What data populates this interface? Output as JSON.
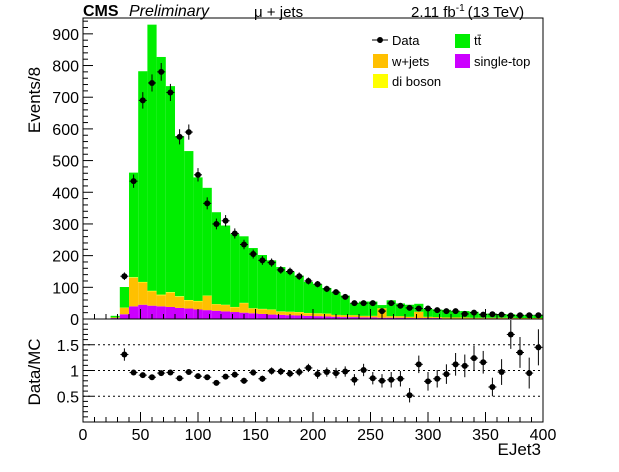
{
  "header": {
    "experiment": "CMS",
    "status": "Preliminary",
    "channel": "μ + jets",
    "lumi_value": "2.11 fb",
    "lumi_exp": "-1",
    "energy": "(13 TeV)"
  },
  "colors": {
    "ttbar": "#00ee00",
    "wjets": "#ffc000",
    "singletop": "#cc00ff",
    "diboson": "#ffff00",
    "data": "#000000",
    "ratio_ref": "#000000"
  },
  "legend": {
    "data": "Data",
    "ttbar": "tt̄",
    "wjets": "w+jets",
    "singletop": "single-top",
    "diboson": "di boson"
  },
  "chart_data": [
    {
      "type": "bar",
      "stacked": true,
      "ylabel": "Events/8",
      "xlim": [
        0,
        400
      ],
      "ylim": [
        0,
        950
      ],
      "y_ticks": [
        0,
        100,
        200,
        300,
        400,
        500,
        600,
        700,
        800,
        900
      ],
      "bin_width": 8,
      "bin_edges_start": [
        24,
        32,
        40,
        48,
        56,
        64,
        72,
        80,
        88,
        96,
        104,
        112,
        120,
        128,
        136,
        144,
        152,
        160,
        168,
        176,
        184,
        192,
        200,
        208,
        216,
        224,
        232,
        240,
        248,
        256,
        264,
        272,
        280,
        288,
        296,
        304,
        312,
        320,
        328,
        336,
        344,
        352,
        360,
        368,
        376,
        384,
        392
      ],
      "series": [
        {
          "name": "single-top",
          "values": [
            3,
            15,
            40,
            45,
            42,
            40,
            38,
            35,
            33,
            30,
            28,
            26,
            24,
            22,
            20,
            18,
            16,
            14,
            13,
            12,
            11,
            10,
            9,
            8,
            7,
            6,
            6,
            5,
            5,
            4,
            4,
            4,
            3,
            3,
            3,
            3,
            2,
            2,
            2,
            2,
            2,
            2,
            2,
            2,
            1,
            1,
            1
          ]
        },
        {
          "name": "w+jets",
          "values": [
            2,
            20,
            90,
            70,
            45,
            35,
            45,
            35,
            25,
            25,
            45,
            20,
            20,
            15,
            30,
            15,
            15,
            15,
            10,
            10,
            10,
            8,
            8,
            8,
            6,
            6,
            6,
            5,
            5,
            30,
            5,
            5,
            4,
            20,
            4,
            3,
            3,
            3,
            3,
            2,
            2,
            2,
            2,
            2,
            2,
            2,
            2
          ]
        },
        {
          "name": "di boson",
          "values": [
            0,
            1,
            2,
            2,
            2,
            2,
            2,
            2,
            2,
            2,
            1,
            1,
            1,
            1,
            1,
            1,
            1,
            1,
            1,
            1,
            1,
            1,
            1,
            1,
            0,
            0,
            0,
            0,
            0,
            0,
            0,
            0,
            0,
            0,
            0,
            0,
            0,
            0,
            0,
            0,
            0,
            0,
            0,
            0,
            0,
            0,
            0
          ]
        },
        {
          "name": "tt̄",
          "values": [
            5,
            65,
            330,
            665,
            840,
            750,
            650,
            505,
            470,
            390,
            340,
            290,
            250,
            230,
            210,
            190,
            170,
            155,
            140,
            127,
            115,
            98,
            92,
            81,
            72,
            62,
            38,
            45,
            45,
            10,
            50,
            40,
            38,
            25,
            25,
            24,
            24,
            20,
            20,
            19,
            13,
            13,
            11,
            11,
            10,
            10,
            9
          ]
        }
      ],
      "data_points": {
        "name": "Data",
        "x": [
          36,
          44,
          52,
          60,
          68,
          76,
          84,
          92,
          100,
          108,
          116,
          124,
          132,
          140,
          148,
          156,
          164,
          172,
          180,
          188,
          196,
          204,
          212,
          220,
          228,
          236,
          244,
          252,
          260,
          268,
          276,
          284,
          292,
          300,
          308,
          316,
          324,
          332,
          340,
          348,
          356,
          364,
          372,
          380,
          388,
          396
        ],
        "y": [
          135,
          435,
          690,
          745,
          780,
          715,
          575,
          590,
          455,
          365,
          300,
          310,
          270,
          235,
          205,
          185,
          178,
          155,
          150,
          135,
          120,
          110,
          95,
          85,
          70,
          50,
          50,
          50,
          25,
          50,
          42,
          35,
          33,
          33,
          28,
          25,
          25,
          16,
          20,
          14,
          15,
          14,
          11,
          12,
          12,
          12
        ],
        "yerr": [
          12,
          21,
          26,
          27,
          28,
          27,
          24,
          24,
          21,
          19,
          17,
          18,
          16,
          15,
          14,
          14,
          13,
          12,
          12,
          12,
          11,
          10,
          10,
          9,
          8,
          7,
          7,
          7,
          5,
          7,
          6,
          6,
          6,
          6,
          5,
          5,
          5,
          4,
          4,
          4,
          4,
          4,
          3,
          3,
          3,
          3
        ]
      }
    },
    {
      "type": "scatter",
      "xlabel": "EJet3",
      "ylabel": "Data/MC",
      "xlim": [
        0,
        400
      ],
      "ylim": [
        0,
        2.0
      ],
      "x_ticks": [
        0,
        50,
        100,
        150,
        200,
        250,
        300,
        350,
        400
      ],
      "y_ticks": [
        0.5,
        1,
        1.5
      ],
      "y_tick_labels": [
        "0.5",
        "1",
        "1.5"
      ],
      "reference_lines": [
        0.5,
        1.0,
        1.5
      ],
      "x": [
        36,
        44,
        52,
        60,
        68,
        76,
        84,
        92,
        100,
        108,
        116,
        124,
        132,
        140,
        148,
        156,
        164,
        172,
        180,
        188,
        196,
        204,
        212,
        220,
        228,
        236,
        244,
        252,
        260,
        268,
        276,
        284,
        292,
        300,
        308,
        316,
        324,
        332,
        340,
        348,
        356,
        364,
        372,
        380,
        388,
        396
      ],
      "y": [
        1.31,
        0.96,
        0.91,
        0.87,
        0.95,
        0.96,
        0.85,
        0.97,
        0.89,
        0.87,
        0.76,
        0.88,
        0.92,
        0.8,
        0.96,
        0.84,
        0.99,
        0.98,
        0.94,
        0.97,
        1.05,
        0.93,
        0.97,
        0.95,
        0.98,
        0.82,
        1.01,
        0.85,
        0.8,
        0.82,
        0.84,
        0.52,
        1.12,
        0.79,
        0.84,
        0.93,
        1.12,
        1.09,
        1.24,
        1.16,
        0.68,
        0.97,
        1.7,
        1.35,
        0.95,
        1.45
      ],
      "yerr": [
        0.12,
        0.05,
        0.04,
        0.04,
        0.04,
        0.04,
        0.04,
        0.04,
        0.05,
        0.05,
        0.05,
        0.05,
        0.06,
        0.06,
        0.06,
        0.06,
        0.07,
        0.07,
        0.07,
        0.08,
        0.08,
        0.09,
        0.09,
        0.1,
        0.1,
        0.11,
        0.12,
        0.12,
        0.13,
        0.15,
        0.15,
        0.14,
        0.17,
        0.18,
        0.17,
        0.19,
        0.22,
        0.22,
        0.24,
        0.22,
        0.18,
        0.25,
        0.28,
        0.3,
        0.3,
        0.35
      ]
    }
  ]
}
